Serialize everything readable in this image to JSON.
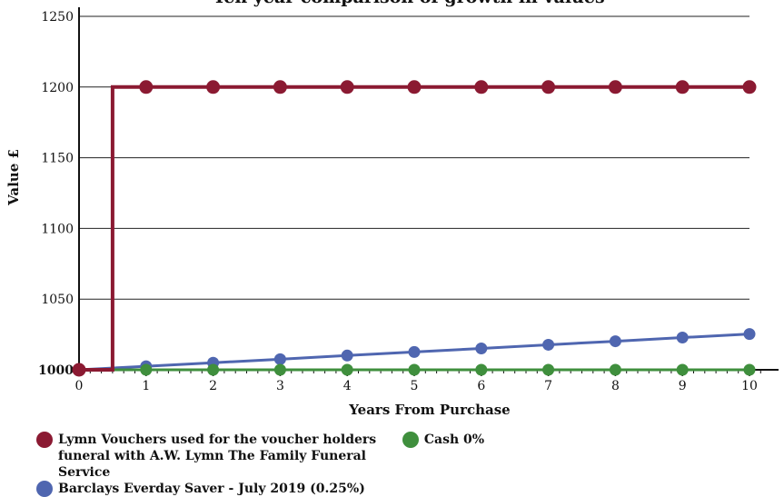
{
  "chart_data": {
    "type": "line",
    "title": "Ten year comparison of growth in values",
    "xlabel": "Years From Purchase",
    "ylabel": "Value £",
    "xlim": [
      0,
      10
    ],
    "ylim": [
      1000,
      1250
    ],
    "x_ticks": [
      0,
      1,
      2,
      3,
      4,
      5,
      6,
      7,
      8,
      9,
      10
    ],
    "y_ticks": [
      1000,
      1050,
      1100,
      1150,
      1200,
      1250
    ],
    "grid": "horizontal",
    "legend_position": "bottom",
    "series": [
      {
        "name": "Lymn Vouchers used for the voucher holders funeral with A.W. Lymn The Family Funeral Service",
        "color": "#8b1a32",
        "step": true,
        "step_at": 0.5,
        "x": [
          0,
          1,
          2,
          3,
          4,
          5,
          6,
          7,
          8,
          9,
          10
        ],
        "values": [
          1000,
          1200,
          1200,
          1200,
          1200,
          1200,
          1200,
          1200,
          1200,
          1200,
          1200
        ]
      },
      {
        "name": "Cash 0%",
        "color": "#3f8f3d",
        "x": [
          0,
          1,
          2,
          3,
          4,
          5,
          6,
          7,
          8,
          9,
          10
        ],
        "values": [
          1000,
          1000,
          1000,
          1000,
          1000,
          1000,
          1000,
          1000,
          1000,
          1000,
          1000
        ]
      },
      {
        "name": "Barclays Everday Saver - July 2019 (0.25%)",
        "color": "#4f66b0",
        "x": [
          0,
          1,
          2,
          3,
          4,
          5,
          6,
          7,
          8,
          9,
          10
        ],
        "values": [
          1000,
          1002.5,
          1005.0,
          1007.5,
          1010.1,
          1012.6,
          1015.1,
          1017.7,
          1020.2,
          1022.8,
          1025.3
        ]
      }
    ]
  }
}
